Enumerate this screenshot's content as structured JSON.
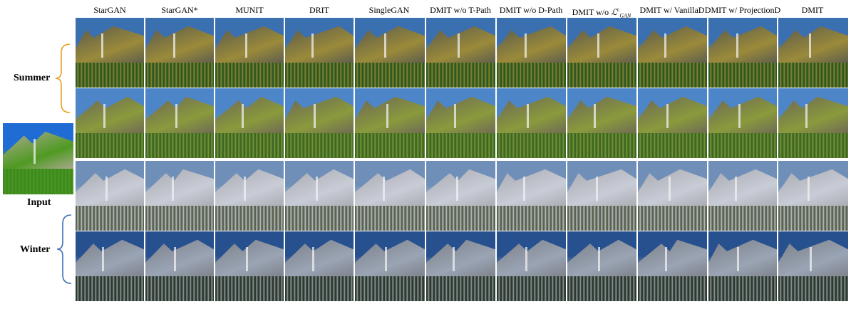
{
  "columns": [
    "StarGAN",
    "StarGAN*",
    "MUNIT",
    "DRIT",
    "SingleGAN",
    "DMIT w/o T-Path",
    "DMIT w/o D-Path",
    "DMIT w/o L^c_GAN",
    "DMIT w/ VanillaD",
    "DMIT w/ ProjectionD",
    "DMIT"
  ],
  "column_header_special": {
    "prefix": "DMIT w/o ",
    "symbol": "ℒ",
    "sup": "c",
    "sub": "GAN"
  },
  "row_groups": [
    {
      "label": "Summer"
    },
    {
      "label": "Winter"
    }
  ],
  "input_label": "Input",
  "palettes": {
    "summer_1": [
      "#3a6fb0",
      "#5a5a4e",
      "#2f5a1e",
      "#9a8a3a"
    ],
    "summer_2": [
      "#4d86c8",
      "#6d6656",
      "#3c6a23",
      "#8a9a3c"
    ],
    "winter_1": [
      "#6f8fb8",
      "#a9aab0",
      "#5b6450",
      "#c8ccd6"
    ],
    "winter_2": [
      "#27508f",
      "#7c8088",
      "#2e3a2c",
      "#9aa4b4"
    ],
    "input": [
      "#1f6cd4",
      "#b2aa98",
      "#3d8a1f",
      "#4f9a22"
    ]
  }
}
